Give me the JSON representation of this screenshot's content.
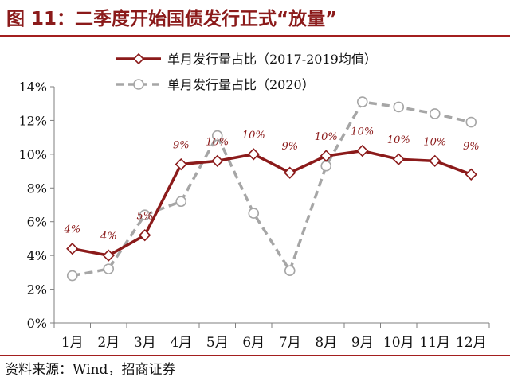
{
  "title": "图 11：二季度开始国债发行正式“放量”",
  "source": "资料来源：Wind，招商证券",
  "colors": {
    "title": "#8b1a1a",
    "series_2017_2019": "#8b1a1a",
    "series_2020": "#a6a6a6",
    "data_label": "#8b1a1a",
    "rule": "#a31f1f"
  },
  "chart_data": {
    "type": "line",
    "categories": [
      "1月",
      "2月",
      "3月",
      "4月",
      "5月",
      "6月",
      "7月",
      "8月",
      "9月",
      "10月",
      "11月",
      "12月"
    ],
    "ylim": [
      0,
      14
    ],
    "yticks": [
      "0%",
      "2%",
      "4%",
      "6%",
      "8%",
      "10%",
      "12%",
      "14%"
    ],
    "grid": false,
    "legend_placement": "top",
    "series": [
      {
        "name": "单月发行量占比（2017-2019均值）",
        "values": [
          4.4,
          4.0,
          5.2,
          9.4,
          9.6,
          10.0,
          8.9,
          9.9,
          10.2,
          9.7,
          9.6,
          8.8
        ],
        "labels": [
          "4%",
          "4%",
          "5%",
          "9%",
          "10%",
          "10%",
          "9%",
          "10%",
          "10%",
          "10%",
          "10%",
          "9%"
        ],
        "style": "solid",
        "marker": "diamond"
      },
      {
        "name": "单月发行量占比（2020）",
        "values": [
          2.8,
          3.2,
          6.4,
          7.2,
          11.1,
          6.5,
          3.1,
          9.3,
          13.1,
          12.8,
          12.4,
          11.9
        ],
        "style": "dashed",
        "marker": "circle"
      }
    ]
  }
}
